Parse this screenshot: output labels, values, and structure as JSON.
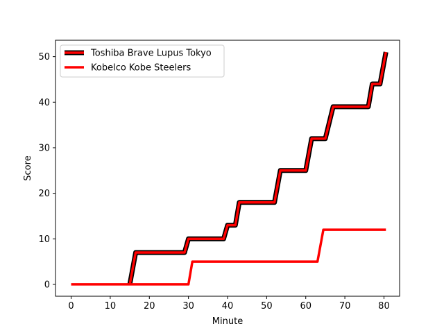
{
  "chart_data": {
    "type": "line",
    "xlabel": "Minute",
    "ylabel": "Score",
    "xlim": [
      -4,
      84
    ],
    "ylim": [
      -2.6,
      53.6
    ],
    "xticks": [
      0,
      10,
      20,
      30,
      40,
      50,
      60,
      70,
      80
    ],
    "yticks": [
      0,
      10,
      20,
      30,
      40,
      50
    ],
    "grid": false,
    "legend_position": "top-left",
    "series": [
      {
        "name": "Toshiba Brave Lupus Tokyo",
        "color": "#ff0000",
        "outline": "#000000",
        "points": [
          [
            15,
            0
          ],
          [
            16.5,
            7
          ],
          [
            29,
            7
          ],
          [
            30,
            10
          ],
          [
            39,
            10
          ],
          [
            40,
            13
          ],
          [
            42,
            13
          ],
          [
            43,
            18
          ],
          [
            52,
            18
          ],
          [
            53.5,
            25
          ],
          [
            60,
            25
          ],
          [
            61.5,
            32
          ],
          [
            65,
            32
          ],
          [
            67,
            39
          ],
          [
            76,
            39
          ],
          [
            77,
            44
          ],
          [
            79,
            44
          ],
          [
            80.5,
            51
          ]
        ]
      },
      {
        "name": "Kobelco Kobe Steelers",
        "color": "#ff0000",
        "outline": null,
        "points": [
          [
            0,
            0
          ],
          [
            30,
            0
          ],
          [
            31,
            5
          ],
          [
            63,
            5
          ],
          [
            64.5,
            12
          ],
          [
            80.5,
            12
          ]
        ]
      }
    ]
  }
}
